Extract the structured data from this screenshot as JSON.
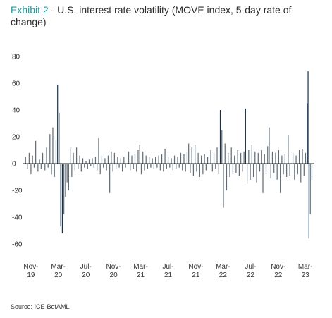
{
  "title": {
    "exhibit": "Exhibit 2",
    "text": "U.S. interest rate volatility (MOVE index, 5-day rate of change)"
  },
  "source": "Source: ICE-BofAML",
  "chart_data": {
    "type": "bar",
    "title": "U.S. interest rate volatility (MOVE index, 5-day rate of change)",
    "xlabel": "",
    "ylabel": "",
    "ylim": [
      -60,
      80
    ],
    "yticks": [
      80,
      60,
      40,
      20,
      0,
      -20,
      -40,
      -60
    ],
    "xticks": [
      {
        "line1": "Nov-",
        "line2": "19",
        "date": "2019-11-01"
      },
      {
        "line1": "Mar-",
        "line2": "20",
        "date": "2020-03-01"
      },
      {
        "line1": "Jul-",
        "line2": "20",
        "date": "2020-07-01"
      },
      {
        "line1": "Nov-",
        "line2": "20",
        "date": "2020-11-01"
      },
      {
        "line1": "Mar-",
        "line2": "21",
        "date": "2021-03-01"
      },
      {
        "line1": "Jul-",
        "line2": "21",
        "date": "2021-07-01"
      },
      {
        "line1": "Nov-",
        "line2": "21",
        "date": "2021-11-01"
      },
      {
        "line1": "Mar-",
        "line2": "22",
        "date": "2022-03-01"
      },
      {
        "line1": "Jul-",
        "line2": "22",
        "date": "2022-07-01"
      },
      {
        "line1": "Nov-",
        "line2": "22",
        "date": "2022-11-01"
      },
      {
        "line1": "Mar-",
        "line2": "23",
        "date": "2023-03-01"
      }
    ],
    "xrange": [
      "2019-10-01",
      "2023-04-10"
    ],
    "grid": false,
    "bar_color": "#5e6a74",
    "highlight_color": "#16324f",
    "points": [
      {
        "x": "2019-10-08",
        "y": 5
      },
      {
        "x": "2019-10-16",
        "y": -4
      },
      {
        "x": "2019-10-24",
        "y": 8
      },
      {
        "x": "2019-11-01",
        "y": -8
      },
      {
        "x": "2019-11-08",
        "y": 6
      },
      {
        "x": "2019-11-15",
        "y": -3
      },
      {
        "x": "2019-11-22",
        "y": 17
      },
      {
        "x": "2019-12-02",
        "y": -6
      },
      {
        "x": "2019-12-09",
        "y": 3
      },
      {
        "x": "2019-12-16",
        "y": -4
      },
      {
        "x": "2019-12-23",
        "y": 8
      },
      {
        "x": "2020-01-02",
        "y": -5
      },
      {
        "x": "2020-01-09",
        "y": 12
      },
      {
        "x": "2020-01-16",
        "y": -3
      },
      {
        "x": "2020-01-24",
        "y": 22
      },
      {
        "x": "2020-01-31",
        "y": -8
      },
      {
        "x": "2020-02-06",
        "y": 27
      },
      {
        "x": "2020-02-13",
        "y": -10
      },
      {
        "x": "2020-02-20",
        "y": 18
      },
      {
        "x": "2020-02-27",
        "y": 59
      },
      {
        "x": "2020-03-05",
        "y": 38
      },
      {
        "x": "2020-03-12",
        "y": -47
      },
      {
        "x": "2020-03-19",
        "y": -52
      },
      {
        "x": "2020-03-26",
        "y": -38
      },
      {
        "x": "2020-04-02",
        "y": -25
      },
      {
        "x": "2020-04-09",
        "y": -14
      },
      {
        "x": "2020-04-16",
        "y": -20
      },
      {
        "x": "2020-04-23",
        "y": 12
      },
      {
        "x": "2020-04-30",
        "y": -10
      },
      {
        "x": "2020-05-07",
        "y": 8
      },
      {
        "x": "2020-05-14",
        "y": -5
      },
      {
        "x": "2020-05-21",
        "y": 12
      },
      {
        "x": "2020-05-28",
        "y": -4
      },
      {
        "x": "2020-06-04",
        "y": 6
      },
      {
        "x": "2020-06-11",
        "y": -6
      },
      {
        "x": "2020-06-18",
        "y": 4
      },
      {
        "x": "2020-06-25",
        "y": -3
      },
      {
        "x": "2020-07-02",
        "y": 2
      },
      {
        "x": "2020-07-09",
        "y": -4
      },
      {
        "x": "2020-07-16",
        "y": 3
      },
      {
        "x": "2020-07-23",
        "y": -2
      },
      {
        "x": "2020-07-30",
        "y": 4
      },
      {
        "x": "2020-08-06",
        "y": -3
      },
      {
        "x": "2020-08-13",
        "y": 5
      },
      {
        "x": "2020-08-20",
        "y": -5
      },
      {
        "x": "2020-08-27",
        "y": 19
      },
      {
        "x": "2020-09-03",
        "y": -8
      },
      {
        "x": "2020-09-10",
        "y": 6
      },
      {
        "x": "2020-09-17",
        "y": -3
      },
      {
        "x": "2020-09-24",
        "y": 4
      },
      {
        "x": "2020-10-01",
        "y": -5
      },
      {
        "x": "2020-10-08",
        "y": 6
      },
      {
        "x": "2020-10-15",
        "y": -22
      },
      {
        "x": "2020-10-22",
        "y": 9
      },
      {
        "x": "2020-10-29",
        "y": -6
      },
      {
        "x": "2020-11-05",
        "y": 8
      },
      {
        "x": "2020-11-12",
        "y": -4
      },
      {
        "x": "2020-11-19",
        "y": 5
      },
      {
        "x": "2020-11-26",
        "y": -3
      },
      {
        "x": "2020-12-03",
        "y": 4
      },
      {
        "x": "2020-12-10",
        "y": -6
      },
      {
        "x": "2020-12-17",
        "y": 5
      },
      {
        "x": "2020-12-24",
        "y": -3
      },
      {
        "x": "2021-01-07",
        "y": 9
      },
      {
        "x": "2021-01-14",
        "y": -5
      },
      {
        "x": "2021-01-21",
        "y": 6
      },
      {
        "x": "2021-01-28",
        "y": -4
      },
      {
        "x": "2021-02-04",
        "y": 7
      },
      {
        "x": "2021-02-11",
        "y": -6
      },
      {
        "x": "2021-02-18",
        "y": 10
      },
      {
        "x": "2021-02-25",
        "y": 14
      },
      {
        "x": "2021-03-04",
        "y": -8
      },
      {
        "x": "2021-03-11",
        "y": 9
      },
      {
        "x": "2021-03-18",
        "y": -5
      },
      {
        "x": "2021-03-25",
        "y": 6
      },
      {
        "x": "2021-04-01",
        "y": -4
      },
      {
        "x": "2021-04-08",
        "y": 5
      },
      {
        "x": "2021-04-15",
        "y": -3
      },
      {
        "x": "2021-04-22",
        "y": 4
      },
      {
        "x": "2021-04-29",
        "y": -4
      },
      {
        "x": "2021-05-06",
        "y": 5
      },
      {
        "x": "2021-05-13",
        "y": -3
      },
      {
        "x": "2021-05-20",
        "y": 6
      },
      {
        "x": "2021-05-27",
        "y": -5
      },
      {
        "x": "2021-06-03",
        "y": 7
      },
      {
        "x": "2021-06-10",
        "y": -6
      },
      {
        "x": "2021-06-17",
        "y": 11
      },
      {
        "x": "2021-06-24",
        "y": -4
      },
      {
        "x": "2021-07-01",
        "y": 5
      },
      {
        "x": "2021-07-08",
        "y": -3
      },
      {
        "x": "2021-07-15",
        "y": 4
      },
      {
        "x": "2021-07-22",
        "y": -5
      },
      {
        "x": "2021-07-29",
        "y": 6
      },
      {
        "x": "2021-08-05",
        "y": -4
      },
      {
        "x": "2021-08-12",
        "y": 5
      },
      {
        "x": "2021-08-19",
        "y": -3
      },
      {
        "x": "2021-08-26",
        "y": 8
      },
      {
        "x": "2021-09-02",
        "y": -5
      },
      {
        "x": "2021-09-09",
        "y": 7
      },
      {
        "x": "2021-09-16",
        "y": -6
      },
      {
        "x": "2021-09-23",
        "y": 9
      },
      {
        "x": "2021-09-30",
        "y": 15
      },
      {
        "x": "2021-10-07",
        "y": -7
      },
      {
        "x": "2021-10-14",
        "y": 12
      },
      {
        "x": "2021-10-21",
        "y": -9
      },
      {
        "x": "2021-10-28",
        "y": 14
      },
      {
        "x": "2021-11-04",
        "y": -6
      },
      {
        "x": "2021-11-11",
        "y": 8
      },
      {
        "x": "2021-11-18",
        "y": -10
      },
      {
        "x": "2021-11-25",
        "y": 6
      },
      {
        "x": "2021-12-02",
        "y": -8
      },
      {
        "x": "2021-12-09",
        "y": 7
      },
      {
        "x": "2021-12-16",
        "y": -5
      },
      {
        "x": "2021-12-23",
        "y": 5
      },
      {
        "x": "2022-01-06",
        "y": 10
      },
      {
        "x": "2022-01-13",
        "y": -6
      },
      {
        "x": "2022-01-20",
        "y": 8
      },
      {
        "x": "2022-01-27",
        "y": -4
      },
      {
        "x": "2022-02-03",
        "y": 12
      },
      {
        "x": "2022-02-10",
        "y": -8
      },
      {
        "x": "2022-02-17",
        "y": 40
      },
      {
        "x": "2022-02-24",
        "y": 25
      },
      {
        "x": "2022-03-03",
        "y": -33
      },
      {
        "x": "2022-03-10",
        "y": 15
      },
      {
        "x": "2022-03-17",
        "y": -20
      },
      {
        "x": "2022-03-24",
        "y": 8
      },
      {
        "x": "2022-03-31",
        "y": -10
      },
      {
        "x": "2022-04-07",
        "y": 12
      },
      {
        "x": "2022-04-14",
        "y": -8
      },
      {
        "x": "2022-04-21",
        "y": 6
      },
      {
        "x": "2022-04-28",
        "y": -7
      },
      {
        "x": "2022-05-05",
        "y": 10
      },
      {
        "x": "2022-05-12",
        "y": -9
      },
      {
        "x": "2022-05-19",
        "y": 8
      },
      {
        "x": "2022-05-26",
        "y": -6
      },
      {
        "x": "2022-06-02",
        "y": 9
      },
      {
        "x": "2022-06-09",
        "y": 41
      },
      {
        "x": "2022-06-16",
        "y": -15
      },
      {
        "x": "2022-06-23",
        "y": 10
      },
      {
        "x": "2022-06-30",
        "y": -12
      },
      {
        "x": "2022-07-07",
        "y": 14
      },
      {
        "x": "2022-07-14",
        "y": -10
      },
      {
        "x": "2022-07-21",
        "y": 9
      },
      {
        "x": "2022-07-28",
        "y": -14
      },
      {
        "x": "2022-08-04",
        "y": 8
      },
      {
        "x": "2022-08-11",
        "y": -6
      },
      {
        "x": "2022-08-18",
        "y": 10
      },
      {
        "x": "2022-08-25",
        "y": -22
      },
      {
        "x": "2022-09-01",
        "y": 7
      },
      {
        "x": "2022-09-08",
        "y": -8
      },
      {
        "x": "2022-09-15",
        "y": 13
      },
      {
        "x": "2022-09-22",
        "y": 27
      },
      {
        "x": "2022-09-29",
        "y": -11
      },
      {
        "x": "2022-10-06",
        "y": 9
      },
      {
        "x": "2022-10-13",
        "y": -7
      },
      {
        "x": "2022-10-20",
        "y": 8
      },
      {
        "x": "2022-10-27",
        "y": -12
      },
      {
        "x": "2022-11-03",
        "y": 10
      },
      {
        "x": "2022-11-10",
        "y": -22
      },
      {
        "x": "2022-11-17",
        "y": 6
      },
      {
        "x": "2022-11-24",
        "y": -8
      },
      {
        "x": "2022-12-01",
        "y": 7
      },
      {
        "x": "2022-12-08",
        "y": -10
      },
      {
        "x": "2022-12-15",
        "y": 21
      },
      {
        "x": "2022-12-22",
        "y": -9
      },
      {
        "x": "2023-01-05",
        "y": 8
      },
      {
        "x": "2023-01-12",
        "y": -12
      },
      {
        "x": "2023-01-19",
        "y": 6
      },
      {
        "x": "2023-01-26",
        "y": -8
      },
      {
        "x": "2023-02-02",
        "y": 10
      },
      {
        "x": "2023-02-09",
        "y": -14
      },
      {
        "x": "2023-02-16",
        "y": 11
      },
      {
        "x": "2023-02-23",
        "y": -9
      },
      {
        "x": "2023-03-02",
        "y": 8
      },
      {
        "x": "2023-03-09",
        "y": 45
      },
      {
        "x": "2023-03-13",
        "y": 69
      },
      {
        "x": "2023-03-17",
        "y": -56
      },
      {
        "x": "2023-03-23",
        "y": -38
      },
      {
        "x": "2023-03-30",
        "y": -12
      }
    ]
  }
}
